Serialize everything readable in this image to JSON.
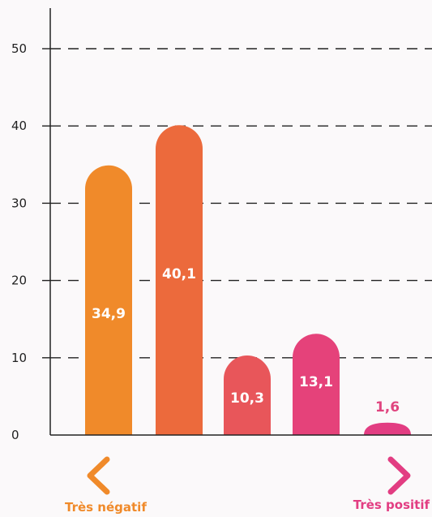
{
  "chart_data": {
    "type": "bar",
    "categories": [
      "",
      "",
      "",
      "",
      ""
    ],
    "values": [
      34.9,
      40.1,
      10.3,
      13.1,
      1.6
    ],
    "value_labels": [
      "34,9",
      "40,1",
      "10,3",
      "13,1",
      "1,6"
    ],
    "bar_colors": [
      "#f08a2a",
      "#ec6a3c",
      "#e8565a",
      "#e5427a",
      "#e23d82"
    ],
    "ylim": [
      0,
      50
    ],
    "yticks": [
      "0",
      "10",
      "20",
      "30",
      "40",
      "50"
    ],
    "grid": true,
    "title": "",
    "xlabel": "",
    "ylabel": ""
  },
  "scale": {
    "left_label": "Très négatif",
    "right_label": "Très positif",
    "left_color": "#f08a2a",
    "right_color": "#e23d82"
  }
}
